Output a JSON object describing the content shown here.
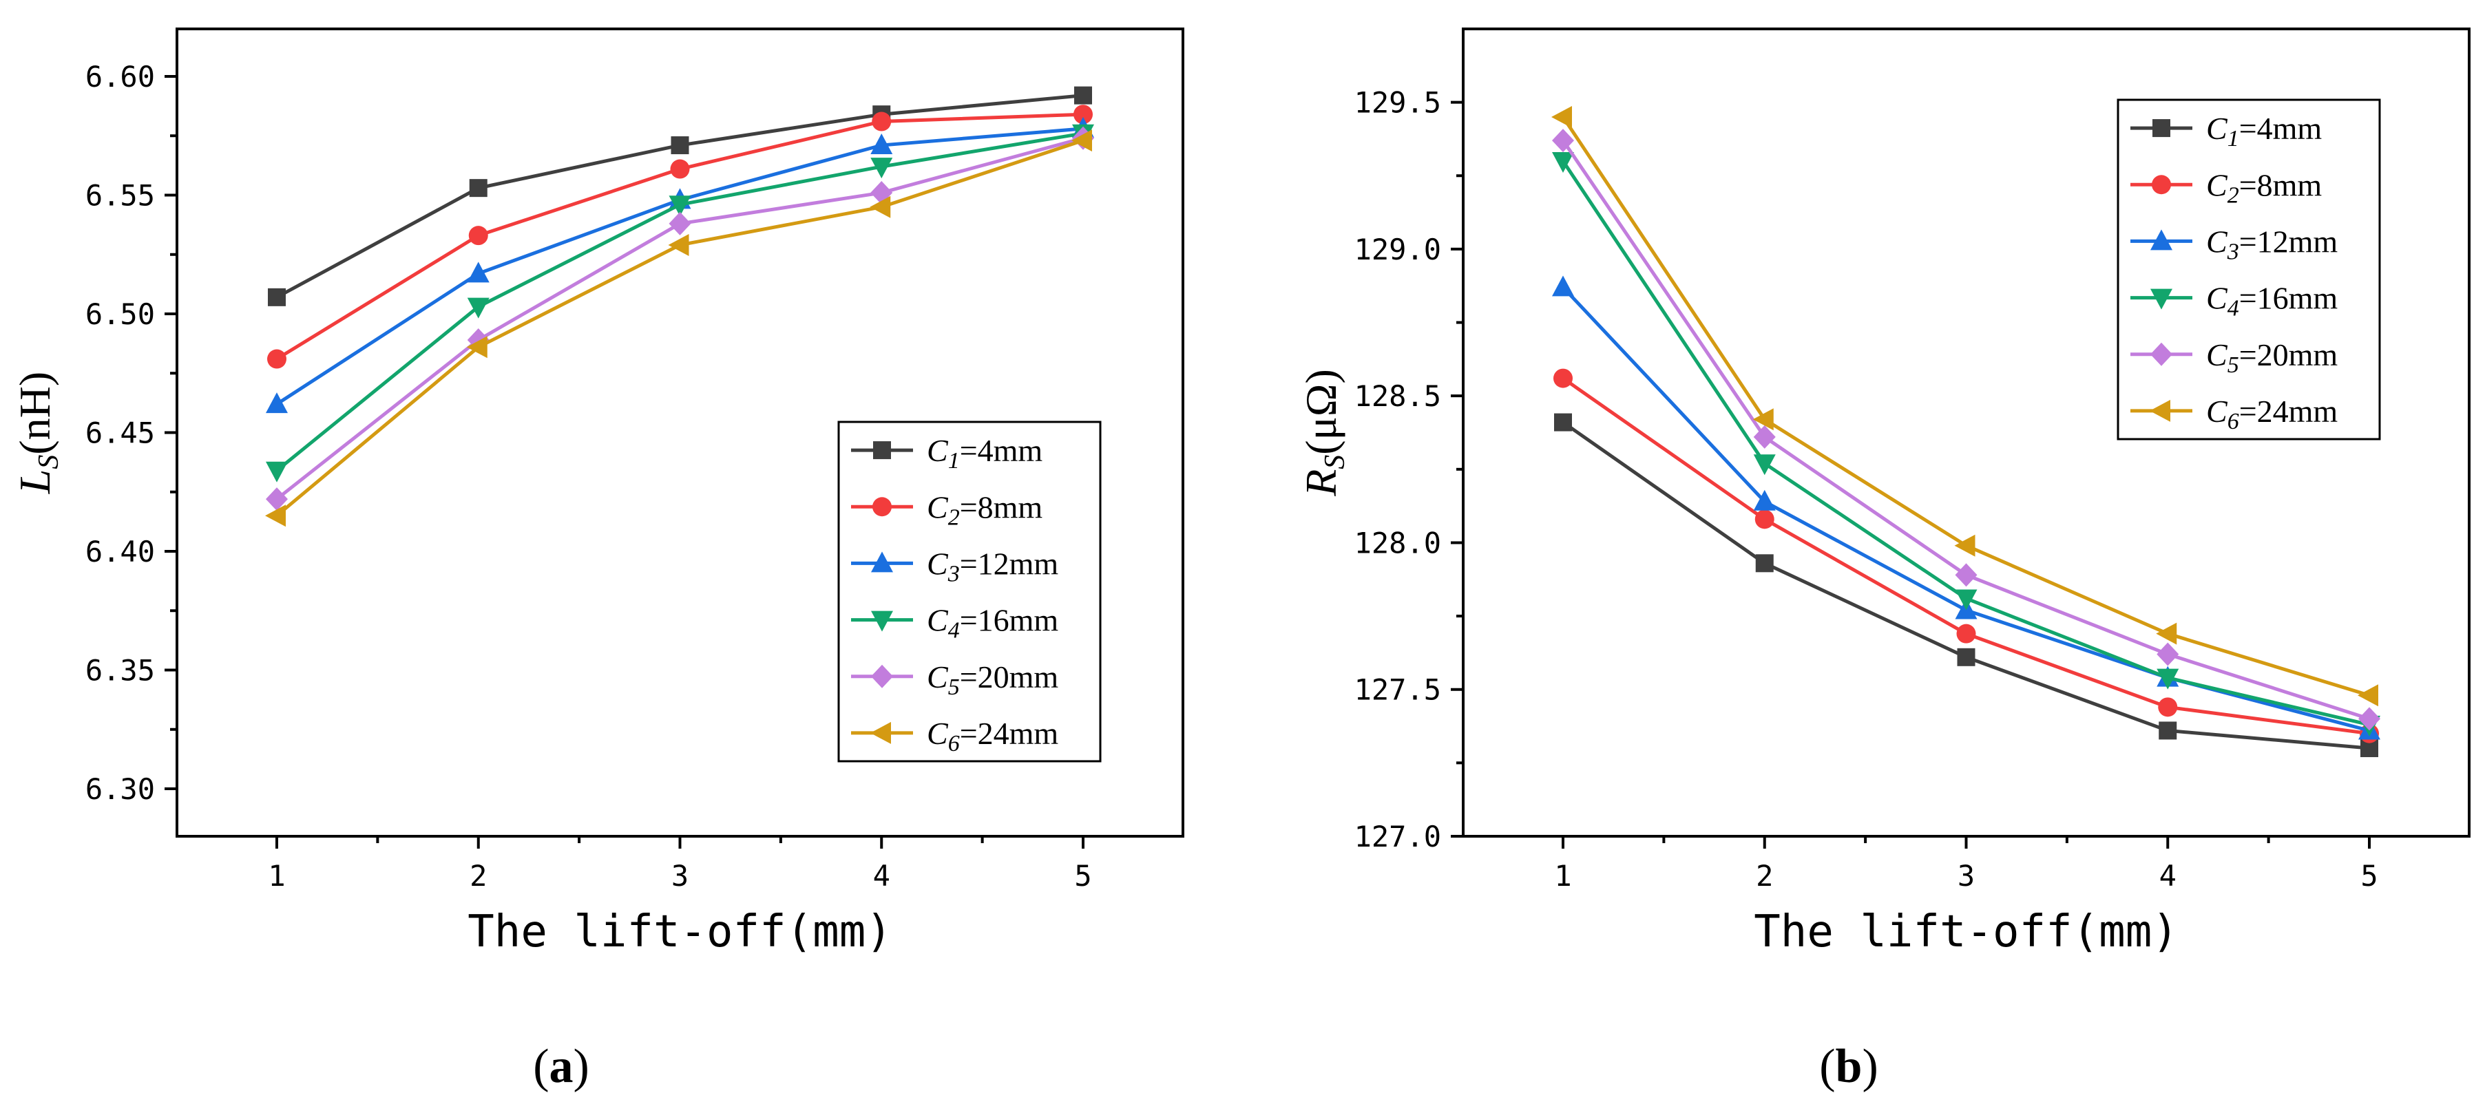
{
  "chart_data": [
    {
      "type": "line",
      "panel_label": "a",
      "xlabel": "The lift-off(mm)",
      "ylabel_main": "L",
      "ylabel_sub": "S",
      "ylabel_unit": "(nH)",
      "x": [
        1,
        2,
        3,
        4,
        5
      ],
      "xticks": [
        "1",
        "2",
        "3",
        "4",
        "5"
      ],
      "ylim": [
        6.28,
        6.62
      ],
      "yticks": [
        "6.30",
        "6.35",
        "6.40",
        "6.45",
        "6.50",
        "6.55",
        "6.60"
      ],
      "ytick_values": [
        6.3,
        6.35,
        6.4,
        6.45,
        6.5,
        6.55,
        6.6
      ],
      "legend_position": "lower-right",
      "series": [
        {
          "name": "C1=4mm",
          "label_main": "C",
          "label_sub": "1",
          "label_rest": "=4mm",
          "color": "#3f3f3f",
          "marker": "square",
          "values": [
            6.507,
            6.553,
            6.571,
            6.584,
            6.592
          ]
        },
        {
          "name": "C2=8mm",
          "label_main": "C",
          "label_sub": "2",
          "label_rest": "=8mm",
          "color": "#f23c3c",
          "marker": "circle",
          "values": [
            6.481,
            6.533,
            6.561,
            6.581,
            6.584
          ]
        },
        {
          "name": "C3=12mm",
          "label_main": "C",
          "label_sub": "3",
          "label_rest": "=12mm",
          "color": "#1a6fdf",
          "marker": "triangle-up",
          "values": [
            6.462,
            6.517,
            6.548,
            6.571,
            6.578
          ]
        },
        {
          "name": "C4=16mm",
          "label_main": "C",
          "label_sub": "4",
          "label_rest": "=16mm",
          "color": "#12a56c",
          "marker": "triangle-down",
          "values": [
            6.434,
            6.503,
            6.546,
            6.562,
            6.576
          ]
        },
        {
          "name": "C5=20mm",
          "label_main": "C",
          "label_sub": "5",
          "label_rest": "=20mm",
          "color": "#c27ddd",
          "marker": "diamond",
          "values": [
            6.422,
            6.489,
            6.538,
            6.551,
            6.574
          ]
        },
        {
          "name": "C6=24mm",
          "label_main": "C",
          "label_sub": "6",
          "label_rest": "=24mm",
          "color": "#d49a12",
          "marker": "triangle-left",
          "values": [
            6.415,
            6.486,
            6.529,
            6.545,
            6.573
          ]
        }
      ]
    },
    {
      "type": "line",
      "panel_label": "b",
      "xlabel": "The lift-off(mm)",
      "ylabel_main": "R",
      "ylabel_sub": "S",
      "ylabel_unit": "(μΩ)",
      "x": [
        1,
        2,
        3,
        4,
        5
      ],
      "xticks": [
        "1",
        "2",
        "3",
        "4",
        "5"
      ],
      "ylim": [
        127.0,
        129.75
      ],
      "yticks": [
        "127.0",
        "127.5",
        "128.0",
        "128.5",
        "129.0",
        "129.5"
      ],
      "ytick_values": [
        127.0,
        127.5,
        128.0,
        128.5,
        129.0,
        129.5
      ],
      "legend_position": "top-right",
      "series": [
        {
          "name": "C1=4mm",
          "label_main": "C",
          "label_sub": "1",
          "label_rest": "=4mm",
          "color": "#3f3f3f",
          "marker": "square",
          "values": [
            128.41,
            127.93,
            127.61,
            127.36,
            127.3
          ]
        },
        {
          "name": "C2=8mm",
          "label_main": "C",
          "label_sub": "2",
          "label_rest": "=8mm",
          "color": "#f23c3c",
          "marker": "circle",
          "values": [
            128.56,
            128.08,
            127.69,
            127.44,
            127.35
          ]
        },
        {
          "name": "C3=12mm",
          "label_main": "C",
          "label_sub": "3",
          "label_rest": "=12mm",
          "color": "#1a6fdf",
          "marker": "triangle-up",
          "values": [
            128.87,
            128.14,
            127.77,
            127.54,
            127.36
          ]
        },
        {
          "name": "C4=16mm",
          "label_main": "C",
          "label_sub": "4",
          "label_rest": "=16mm",
          "color": "#12a56c",
          "marker": "triangle-down",
          "values": [
            129.3,
            128.27,
            127.81,
            127.54,
            127.38
          ]
        },
        {
          "name": "C5=20mm",
          "label_main": "C",
          "label_sub": "5",
          "label_rest": "=20mm",
          "color": "#c27ddd",
          "marker": "diamond",
          "values": [
            129.37,
            128.36,
            127.89,
            127.62,
            127.4
          ]
        },
        {
          "name": "C6=24mm",
          "label_main": "C",
          "label_sub": "6",
          "label_rest": "=24mm",
          "color": "#d49a12",
          "marker": "triangle-left",
          "values": [
            129.45,
            128.42,
            127.99,
            127.69,
            127.48
          ]
        }
      ]
    }
  ]
}
